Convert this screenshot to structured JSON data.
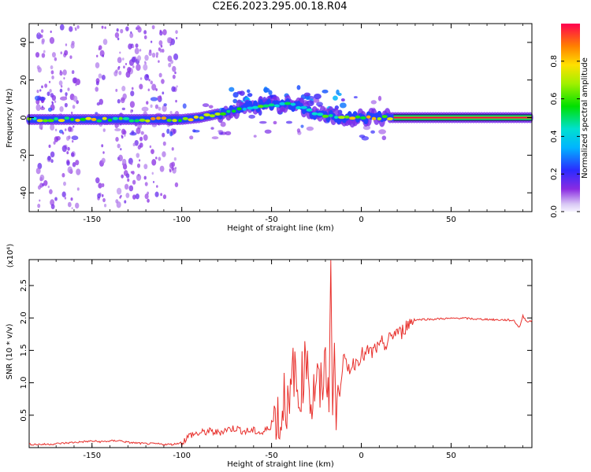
{
  "title": "C2E6.2023.295.00.18.R04",
  "colorbar": {
    "label": "Normalized spectral amplitude",
    "ticks": [
      "0.0",
      "0.2",
      "0.4",
      "0.6",
      "0.8"
    ],
    "tick_values": [
      0.0,
      0.2,
      0.4,
      0.6,
      0.8
    ]
  },
  "chart_data": [
    {
      "type": "heatmap",
      "xlabel": "Height of straight line (km)",
      "ylabel": "Frequency (Hz)",
      "xlim": [
        -185,
        95
      ],
      "ylim": [
        -50,
        50
      ],
      "xticks": [
        -150,
        -100,
        -50,
        0,
        50
      ],
      "xtick_labels": [
        "-150",
        "-100",
        "-50",
        "0",
        "50"
      ],
      "yticks": [
        -40,
        -20,
        0,
        20,
        40
      ],
      "ytick_labels": [
        "-40",
        "-20",
        "0",
        "20",
        "40"
      ],
      "colormap": "rainbow (purple 0.0 to red 1.0)",
      "ridge": {
        "description": "main spectral peak frequency vs height",
        "x": [
          -185,
          -150,
          -100,
          -90,
          -80,
          -70,
          -60,
          -50,
          -40,
          -35,
          -30,
          -25,
          -20,
          -10,
          0,
          10,
          20,
          50,
          95
        ],
        "y": [
          -1,
          -1,
          -1,
          0,
          2,
          4,
          6,
          7,
          7,
          6,
          4,
          2,
          1,
          0,
          0,
          0,
          0,
          0,
          0
        ],
        "amplitude": [
          0.7,
          0.75,
          0.8,
          0.8,
          0.7,
          0.6,
          0.6,
          0.55,
          0.5,
          0.5,
          0.5,
          0.55,
          0.6,
          0.75,
          0.85,
          0.85,
          0.95,
          1.0,
          1.0
        ]
      }
    },
    {
      "type": "line",
      "xlabel": "Height of straight line (km)",
      "ylabel": "SNR (10 * v/v)",
      "y_multiplier_label": "(x10⁴)",
      "xlim": [
        -185,
        95
      ],
      "ylim": [
        0,
        2.9
      ],
      "xticks": [
        -150,
        -100,
        -50,
        0,
        50
      ],
      "xtick_labels": [
        "-150",
        "-100",
        "-50",
        "0",
        "50"
      ],
      "yticks": [
        0.5,
        1.0,
        1.5,
        2.0,
        2.5
      ],
      "ytick_labels": [
        "0.5",
        "1.0",
        "1.5",
        "2.0",
        "2.5"
      ],
      "color": "#e8302c",
      "series": [
        {
          "x": [
            -185,
            -180,
            -175,
            -170,
            -165,
            -160,
            -155,
            -150,
            -145,
            -140,
            -135,
            -130,
            -125,
            -120,
            -115,
            -110,
            -105,
            -100,
            -95,
            -90,
            -85,
            -80,
            -75,
            -70,
            -65,
            -60,
            -55,
            -50,
            -47,
            -45,
            -43,
            -40,
            -38,
            -35,
            -33,
            -30,
            -28,
            -25,
            -23,
            -20,
            -18,
            -17,
            -16,
            -15,
            -14,
            -13,
            -12,
            -10,
            -8,
            -6,
            -4,
            -2,
            0,
            2,
            4,
            6,
            8,
            10,
            12,
            14,
            16,
            18,
            20,
            22,
            24,
            26,
            28,
            30,
            35,
            40,
            45,
            50,
            55,
            60,
            65,
            70,
            75,
            80,
            85,
            88,
            90,
            92,
            95
          ],
          "y": [
            0.05,
            0.05,
            0.05,
            0.06,
            0.07,
            0.08,
            0.09,
            0.1,
            0.09,
            0.1,
            0.11,
            0.08,
            0.07,
            0.06,
            0.06,
            0.05,
            0.05,
            0.08,
            0.2,
            0.22,
            0.25,
            0.23,
            0.28,
            0.3,
            0.25,
            0.26,
            0.22,
            0.35,
            0.55,
            0.3,
            0.9,
            0.45,
            1.3,
            0.7,
            1.05,
            1.5,
            0.6,
            1.1,
            0.8,
            1.3,
            0.9,
            2.9,
            0.5,
            1.6,
            0.3,
            1.0,
            0.9,
            1.4,
            1.2,
            1.25,
            1.3,
            1.35,
            1.45,
            1.4,
            1.5,
            1.45,
            1.55,
            1.5,
            1.65,
            1.55,
            1.7,
            1.75,
            1.8,
            1.75,
            1.85,
            1.9,
            1.95,
            1.97,
            1.98,
            1.98,
            1.99,
            1.99,
            2.0,
            1.99,
            1.98,
            1.98,
            1.97,
            1.97,
            1.96,
            1.85,
            2.03,
            1.95,
            1.95
          ]
        }
      ]
    }
  ]
}
